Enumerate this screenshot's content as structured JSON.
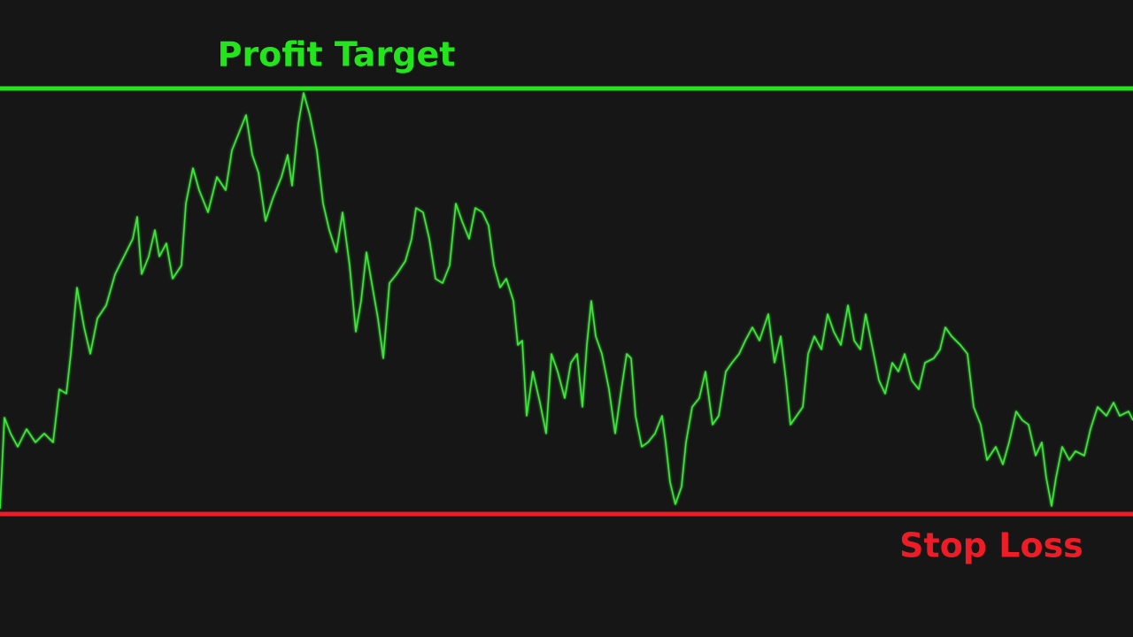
{
  "chart_data": {
    "type": "line",
    "color": "#3ee83a",
    "xlim": [
      0,
      1280
    ],
    "ylim": [
      -139,
      581
    ],
    "x": [
      0,
      5,
      12,
      20,
      30,
      40,
      50,
      60,
      67,
      75,
      80,
      87,
      95,
      102,
      110,
      120,
      130,
      140,
      150,
      155,
      160,
      168,
      175,
      180,
      188,
      195,
      205,
      210,
      218,
      225,
      235,
      245,
      255,
      262,
      270,
      278,
      285,
      292,
      300,
      308,
      318,
      325,
      330,
      337,
      343,
      350,
      358,
      365,
      372,
      380,
      387,
      395,
      402,
      408,
      414,
      420,
      427,
      433,
      440,
      448,
      458,
      465,
      470,
      478,
      485,
      492,
      500,
      508,
      515,
      522,
      530,
      537,
      545,
      552,
      558,
      565,
      572,
      580,
      585,
      590,
      595,
      602,
      610,
      617,
      623,
      630,
      638,
      645,
      652,
      658,
      663,
      668,
      673,
      680,
      688,
      695,
      702,
      708,
      713,
      718,
      725,
      732,
      740,
      748,
      752,
      757,
      763,
      770,
      775,
      782,
      790,
      797,
      805,
      812,
      820,
      827,
      835,
      842,
      850,
      858,
      868,
      875,
      882,
      888,
      893,
      900,
      907,
      913,
      920,
      928,
      935,
      942,
      950,
      958,
      965,
      972,
      978,
      985,
      993,
      1000,
      1008,
      1015,
      1022,
      1030,
      1038,
      1045,
      1055,
      1062,
      1068,
      1075,
      1085,
      1093,
      1100,
      1108,
      1115,
      1125,
      1133,
      1140,
      1148,
      1155,
      1162,
      1170,
      1177,
      1182,
      1188,
      1193,
      1200,
      1208,
      1215,
      1225,
      1232,
      1240,
      1250,
      1258,
      1265,
      1275,
      1280
    ],
    "values": [
      6,
      109,
      91,
      76,
      96,
      81,
      91,
      81,
      141,
      136,
      181,
      256,
      211,
      181,
      221,
      236,
      271,
      291,
      311,
      336,
      271,
      291,
      321,
      291,
      306,
      266,
      281,
      351,
      391,
      366,
      341,
      381,
      366,
      411,
      431,
      451,
      406,
      386,
      331,
      356,
      381,
      406,
      371,
      441,
      476,
      451,
      411,
      351,
      321,
      296,
      341,
      281,
      206,
      241,
      296,
      261,
      221,
      176,
      261,
      271,
      286,
      311,
      346,
      341,
      311,
      266,
      261,
      281,
      351,
      331,
      311,
      346,
      341,
      326,
      281,
      256,
      266,
      241,
      191,
      196,
      111,
      161,
      126,
      91,
      181,
      161,
      131,
      171,
      181,
      121,
      191,
      241,
      201,
      181,
      141,
      91,
      141,
      181,
      176,
      111,
      76,
      81,
      91,
      111,
      81,
      36,
      11,
      31,
      81,
      121,
      131,
      161,
      101,
      111,
      161,
      171,
      181,
      196,
      211,
      196,
      226,
      171,
      201,
      151,
      101,
      111,
      121,
      181,
      201,
      186,
      226,
      206,
      191,
      236,
      196,
      186,
      226,
      191,
      151,
      136,
      171,
      161,
      181,
      151,
      141,
      171,
      176,
      186,
      211,
      201,
      191,
      181,
      121,
      101,
      61,
      76,
      56,
      81,
      116,
      106,
      101,
      66,
      81,
      41,
      9,
      41,
      76,
      61,
      71,
      66,
      96,
      121,
      111,
      126,
      111,
      116,
      106
    ],
    "levels": [
      {
        "label": "Profit Target",
        "value": 481,
        "color": "#22e51c"
      },
      {
        "label": "Stop Loss",
        "value": 0,
        "color": "#ee1c26"
      }
    ]
  }
}
